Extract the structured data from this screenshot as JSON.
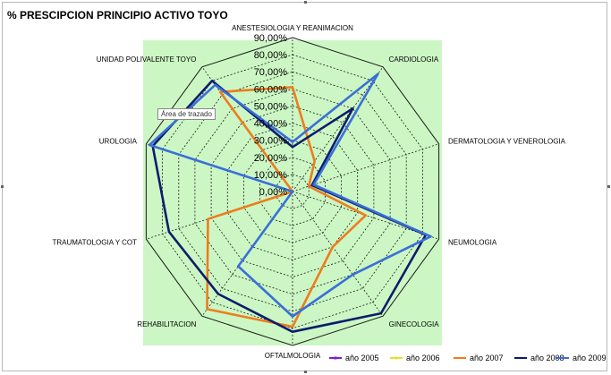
{
  "chart_title": "% PRESCIPCION PRINCIPIO ACTIVO TOYO",
  "tooltip": "Área de trazado",
  "colors": {
    "plot_area": "#ccf7c4",
    "grid": "#1a1a1a"
  },
  "chart_data": {
    "type": "radar",
    "title": "% PRESCIPCION PRINCIPIO ACTIVO TOYO",
    "categories": [
      "ANESTESIOLOGIA Y REANIMACION",
      "CARDIOLOGIA",
      "DERMATOLOGIA Y VENEROLOGIA",
      "NEUMOLOGIA",
      "GINECOLOGIA",
      "OFTALMOLOGIA",
      "REHABILITACION",
      "TRAUMATOLOGIA Y COT",
      "UROLOGIA",
      "UNIDAD POLIVALENTE TOYO"
    ],
    "tick_labels": [
      "0,00%",
      "10,00%",
      "20,00%",
      "30,00%",
      "40,00%",
      "50,00%",
      "60,00%",
      "70,00%",
      "80,00%",
      "90,00%"
    ],
    "rmax": 90,
    "legend_position": "bottom",
    "series": [
      {
        "name": "año 2005",
        "color": "#7b1fd1",
        "marker": true,
        "values": [
          0,
          0,
          0,
          0,
          0,
          0,
          0,
          0,
          0,
          0
        ]
      },
      {
        "name": "año 2006",
        "color": "#e8e02c",
        "marker": true,
        "values": [
          0,
          0,
          0,
          0,
          0,
          0,
          0,
          0,
          0,
          0
        ]
      },
      {
        "name": "año 2007",
        "color": "#ee7c1e",
        "marker": false,
        "values": [
          61,
          22,
          10,
          45,
          40,
          79,
          85,
          52,
          0,
          72
        ]
      },
      {
        "name": "año 2008",
        "color": "#0d1c6b",
        "marker": false,
        "values": [
          26,
          60,
          12,
          82,
          88,
          82,
          74,
          76,
          86,
          80
        ]
      },
      {
        "name": "año 2009",
        "color": "#3a6fd8",
        "marker": false,
        "values": [
          29,
          85,
          13,
          85,
          60,
          73,
          54,
          0,
          88,
          77
        ]
      }
    ]
  }
}
